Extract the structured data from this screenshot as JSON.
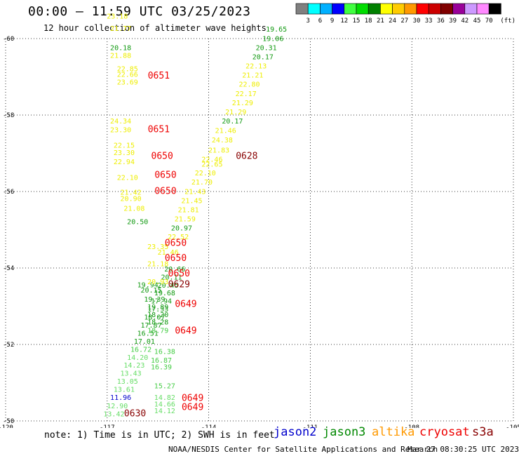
{
  "header": {
    "title": "00:00 — 11:59 UTC 03/25/2023",
    "subtitle": "12 hour collection of altimeter wave heights"
  },
  "colorbar": {
    "unit": "(ft)",
    "colors": [
      "#808080",
      "#00ffff",
      "#00b0ff",
      "#0000ff",
      "#40ff40",
      "#00dd00",
      "#008000",
      "#ffff00",
      "#ffcc00",
      "#ff9900",
      "#ff0000",
      "#cc0000",
      "#800000",
      "#990099",
      "#cc99ff",
      "#ff88ff",
      "#000000"
    ],
    "labels": [
      "3",
      "6",
      "9",
      "12",
      "15",
      "18",
      "21",
      "24",
      "27",
      "30",
      "33",
      "36",
      "39",
      "42",
      "45",
      "70"
    ]
  },
  "chart_data": {
    "type": "scatter",
    "title": "00:00 — 11:59 UTC 03/25/2023",
    "subtitle": "12 hour collection of altimeter wave heights",
    "xlim": [
      -120,
      -105
    ],
    "ylim": [
      -60,
      -50
    ],
    "xticks": [
      "-120",
      "-117",
      "-114",
      "-111",
      "-108",
      "-105"
    ],
    "yticks": [
      "-50",
      "-52",
      "-54",
      "-56",
      "-58",
      "-60"
    ],
    "grid": true,
    "points": [
      {
        "lon": -116.8,
        "lat": -50.12,
        "label": "13.42",
        "color": "#66dd66"
      },
      {
        "lon": -116.7,
        "lat": -50.33,
        "label": "12.90",
        "color": "#66dd66"
      },
      {
        "lon": -116.6,
        "lat": -50.55,
        "label": "11.96",
        "color": "#0000cc"
      },
      {
        "lon": -116.5,
        "lat": -50.76,
        "label": "13.61",
        "color": "#66dd66"
      },
      {
        "lon": -116.4,
        "lat": -50.97,
        "label": "13.05",
        "color": "#66dd66"
      },
      {
        "lon": -116.3,
        "lat": -51.18,
        "label": "13.43",
        "color": "#66dd66"
      },
      {
        "lon": -116.2,
        "lat": -51.39,
        "label": "14.23",
        "color": "#66dd66"
      },
      {
        "lon": -116.1,
        "lat": -51.6,
        "label": "14.20",
        "color": "#66dd66"
      },
      {
        "lon": -116.0,
        "lat": -51.81,
        "label": "16.72",
        "color": "#44cc44"
      },
      {
        "lon": -115.9,
        "lat": -52.02,
        "label": "17.01",
        "color": "#119911"
      },
      {
        "lon": -115.8,
        "lat": -52.23,
        "label": "16.51",
        "color": "#119911"
      },
      {
        "lon": -115.7,
        "lat": -52.44,
        "label": "17.87",
        "color": "#119911"
      },
      {
        "lon": -115.6,
        "lat": -52.65,
        "label": "18.07",
        "color": "#119911"
      },
      {
        "lon": -115.5,
        "lat": -52.86,
        "label": "17.33",
        "color": "#119911"
      },
      {
        "lon": -115.4,
        "lat": -53.07,
        "label": "17.94",
        "color": "#119911"
      },
      {
        "lon": -115.3,
        "lat": -53.28,
        "label": "19.68",
        "color": "#119911"
      },
      {
        "lon": -115.2,
        "lat": -53.49,
        "label": "20.45",
        "color": "#119911"
      },
      {
        "lon": -115.1,
        "lat": -53.7,
        "label": "20.11",
        "color": "#119911"
      },
      {
        "lon": -115.0,
        "lat": -53.91,
        "label": "20.66",
        "color": "#119911"
      },
      {
        "lon": -115.5,
        "lat": -54.05,
        "label": "21.18",
        "color": "#eeee00"
      },
      {
        "lon": -115.2,
        "lat": -54.35,
        "label": "21.46",
        "color": "#eeee00"
      },
      {
        "lon": -115.5,
        "lat": -54.5,
        "label": "23.35",
        "color": "#eeee00"
      },
      {
        "lon": -114.9,
        "lat": -54.75,
        "label": "22.52",
        "color": "#eeee00"
      },
      {
        "lon": -114.8,
        "lat": -54.98,
        "label": "20.97",
        "color": "#119911"
      },
      {
        "lon": -114.7,
        "lat": -55.22,
        "label": "21.59",
        "color": "#eeee00"
      },
      {
        "lon": -116.1,
        "lat": -55.15,
        "label": "20.50",
        "color": "#119911"
      },
      {
        "lon": -114.6,
        "lat": -55.46,
        "label": "21.81",
        "color": "#eeee00"
      },
      {
        "lon": -116.2,
        "lat": -55.5,
        "label": "21.08",
        "color": "#eeee00"
      },
      {
        "lon": -114.5,
        "lat": -55.7,
        "label": "21.45",
        "color": "#eeee00"
      },
      {
        "lon": -116.3,
        "lat": -55.75,
        "label": "20.90",
        "color": "#eeee00"
      },
      {
        "lon": -116.3,
        "lat": -55.92,
        "label": "21.42",
        "color": "#eeee00"
      },
      {
        "lon": -114.4,
        "lat": -55.94,
        "label": "21.43",
        "color": "#eeee00"
      },
      {
        "lon": -114.2,
        "lat": -56.18,
        "label": "21.70",
        "color": "#eeee00"
      },
      {
        "lon": -116.4,
        "lat": -56.3,
        "label": "22.10",
        "color": "#eeee00"
      },
      {
        "lon": -114.1,
        "lat": -56.42,
        "label": "22.10",
        "color": "#eeee00"
      },
      {
        "lon": -113.9,
        "lat": -56.65,
        "label": "22.65",
        "color": "#eeee00"
      },
      {
        "lon": -116.5,
        "lat": -56.72,
        "label": "22.94",
        "color": "#eeee00"
      },
      {
        "lon": -113.9,
        "lat": -56.78,
        "label": "22.46",
        "color": "#eeee00"
      },
      {
        "lon": -116.5,
        "lat": -56.95,
        "label": "23.30",
        "color": "#eeee00"
      },
      {
        "lon": -113.7,
        "lat": -57.02,
        "label": "21.83",
        "color": "#eeee00"
      },
      {
        "lon": -116.5,
        "lat": -57.15,
        "label": "22.15",
        "color": "#eeee00"
      },
      {
        "lon": -113.6,
        "lat": -57.28,
        "label": "24.38",
        "color": "#eeee00"
      },
      {
        "lon": -116.6,
        "lat": -57.55,
        "label": "23.30",
        "color": "#eeee00"
      },
      {
        "lon": -113.5,
        "lat": -57.53,
        "label": "21.46",
        "color": "#eeee00"
      },
      {
        "lon": -116.6,
        "lat": -57.78,
        "label": "24.34",
        "color": "#eeee00"
      },
      {
        "lon": -113.3,
        "lat": -57.78,
        "label": "20.17",
        "color": "#119911"
      },
      {
        "lon": -113.2,
        "lat": -58.02,
        "label": "21.29",
        "color": "#eeee00"
      },
      {
        "lon": -113.0,
        "lat": -58.26,
        "label": "21.29",
        "color": "#eeee00"
      },
      {
        "lon": -112.9,
        "lat": -58.5,
        "label": "22.17",
        "color": "#eeee00"
      },
      {
        "lon": -112.8,
        "lat": -58.74,
        "label": "22.80",
        "color": "#eeee00"
      },
      {
        "lon": -112.7,
        "lat": -58.98,
        "label": "21.21",
        "color": "#eeee00"
      },
      {
        "lon": -112.6,
        "lat": -59.22,
        "label": "22.13",
        "color": "#eeee00"
      },
      {
        "lon": -112.4,
        "lat": -59.46,
        "label": "20.17",
        "color": "#119911"
      },
      {
        "lon": -112.3,
        "lat": -59.7,
        "label": "20.31",
        "color": "#119911"
      },
      {
        "lon": -112.1,
        "lat": -59.94,
        "label": "19.06",
        "color": "#119911"
      },
      {
        "lon": -112.0,
        "lat": -60.18,
        "label": "19.65",
        "color": "#119911"
      },
      {
        "lon": -116.4,
        "lat": -58.8,
        "label": "23.69",
        "color": "#eeee00"
      },
      {
        "lon": -116.4,
        "lat": -59.0,
        "label": "22.66",
        "color": "#eeee00"
      },
      {
        "lon": -116.4,
        "lat": -59.15,
        "label": "22.85",
        "color": "#eeee00"
      },
      {
        "lon": -116.6,
        "lat": -59.5,
        "label": "21.88",
        "color": "#eeee00"
      },
      {
        "lon": -116.6,
        "lat": -59.7,
        "label": "20.18",
        "color": "#119911"
      },
      {
        "lon": -116.6,
        "lat": -60.2,
        "label": "21.77",
        "color": "#eeee00"
      },
      {
        "lon": -116.7,
        "lat": -60.52,
        "label": "23.18",
        "color": "#eeee00"
      },
      {
        "lon": -115.3,
        "lat": -50.2,
        "label": "14.12",
        "color": "#66dd66"
      },
      {
        "lon": -115.3,
        "lat": -50.38,
        "label": "14.66",
        "color": "#66dd66"
      },
      {
        "lon": -115.3,
        "lat": -50.55,
        "label": "14.82",
        "color": "#66dd66"
      },
      {
        "lon": -115.3,
        "lat": -50.85,
        "label": "15.27",
        "color": "#44cc44"
      },
      {
        "lon": -115.4,
        "lat": -51.35,
        "label": "16.39",
        "color": "#44cc44"
      },
      {
        "lon": -115.4,
        "lat": -51.52,
        "label": "16.87",
        "color": "#44cc44"
      },
      {
        "lon": -115.3,
        "lat": -51.75,
        "label": "16.38",
        "color": "#44cc44"
      },
      {
        "lon": -115.5,
        "lat": -52.3,
        "label": "18.79",
        "color": "#44cc44"
      },
      {
        "lon": -115.5,
        "lat": -52.52,
        "label": "18.28",
        "color": "#119911"
      },
      {
        "lon": -115.5,
        "lat": -52.72,
        "label": "18.20",
        "color": "#119911"
      },
      {
        "lon": -115.5,
        "lat": -52.92,
        "label": "19.89",
        "color": "#119911"
      },
      {
        "lon": -115.6,
        "lat": -53.12,
        "label": "19.39",
        "color": "#119911"
      },
      {
        "lon": -115.7,
        "lat": -53.36,
        "label": "20.15",
        "color": "#119911"
      },
      {
        "lon": -115.8,
        "lat": -53.5,
        "label": "19.94",
        "color": "#119911"
      },
      {
        "lon": -115.5,
        "lat": -53.58,
        "label": "20.93",
        "color": "#eeee00"
      }
    ],
    "time_labels": [
      {
        "lon": -116.5,
        "lat": -50.12,
        "label": "0630",
        "color": "#880000"
      },
      {
        "lon": -114.8,
        "lat": -50.28,
        "label": "0649",
        "color": "#ee0000"
      },
      {
        "lon": -114.8,
        "lat": -50.52,
        "label": "0649",
        "color": "#ee0000"
      },
      {
        "lon": -115.0,
        "lat": -52.28,
        "label": "0649",
        "color": "#ee0000"
      },
      {
        "lon": -115.0,
        "lat": -52.98,
        "label": "0649",
        "color": "#ee0000"
      },
      {
        "lon": -115.2,
        "lat": -53.5,
        "label": "0629",
        "color": "#880000"
      },
      {
        "lon": -115.2,
        "lat": -53.78,
        "label": "0650",
        "color": "#ee0000"
      },
      {
        "lon": -115.3,
        "lat": -54.18,
        "label": "0650",
        "color": "#ee0000"
      },
      {
        "lon": -115.3,
        "lat": -54.58,
        "label": "0650",
        "color": "#ee0000"
      },
      {
        "lon": -115.6,
        "lat": -55.94,
        "label": "0650",
        "color": "#ee0000"
      },
      {
        "lon": -115.6,
        "lat": -56.36,
        "label": "0650",
        "color": "#ee0000"
      },
      {
        "lon": -115.7,
        "lat": -56.85,
        "label": "0650",
        "color": "#ee0000"
      },
      {
        "lon": -113.2,
        "lat": -56.85,
        "label": "0628",
        "color": "#880000"
      },
      {
        "lon": -115.8,
        "lat": -57.55,
        "label": "0651",
        "color": "#ee0000"
      },
      {
        "lon": -115.8,
        "lat": -58.95,
        "label": "0651",
        "color": "#ee0000"
      }
    ]
  },
  "note": {
    "text": "note: 1) Time is in UTC; 2) SWH is in feet",
    "satellites": [
      {
        "name": "jason2",
        "color": "#0000cc"
      },
      {
        "name": "jason3",
        "color": "#008800"
      },
      {
        "name": "altika",
        "color": "#ff9900"
      },
      {
        "name": "cryosat",
        "color": "#ee0000"
      },
      {
        "name": "s3a",
        "color": "#880000"
      }
    ]
  },
  "footer": {
    "credit": "NOAA/NESDIS Center for Satellite Applications and Research",
    "timestamp": "Mar 27 08:30:25 UTC 2023"
  }
}
